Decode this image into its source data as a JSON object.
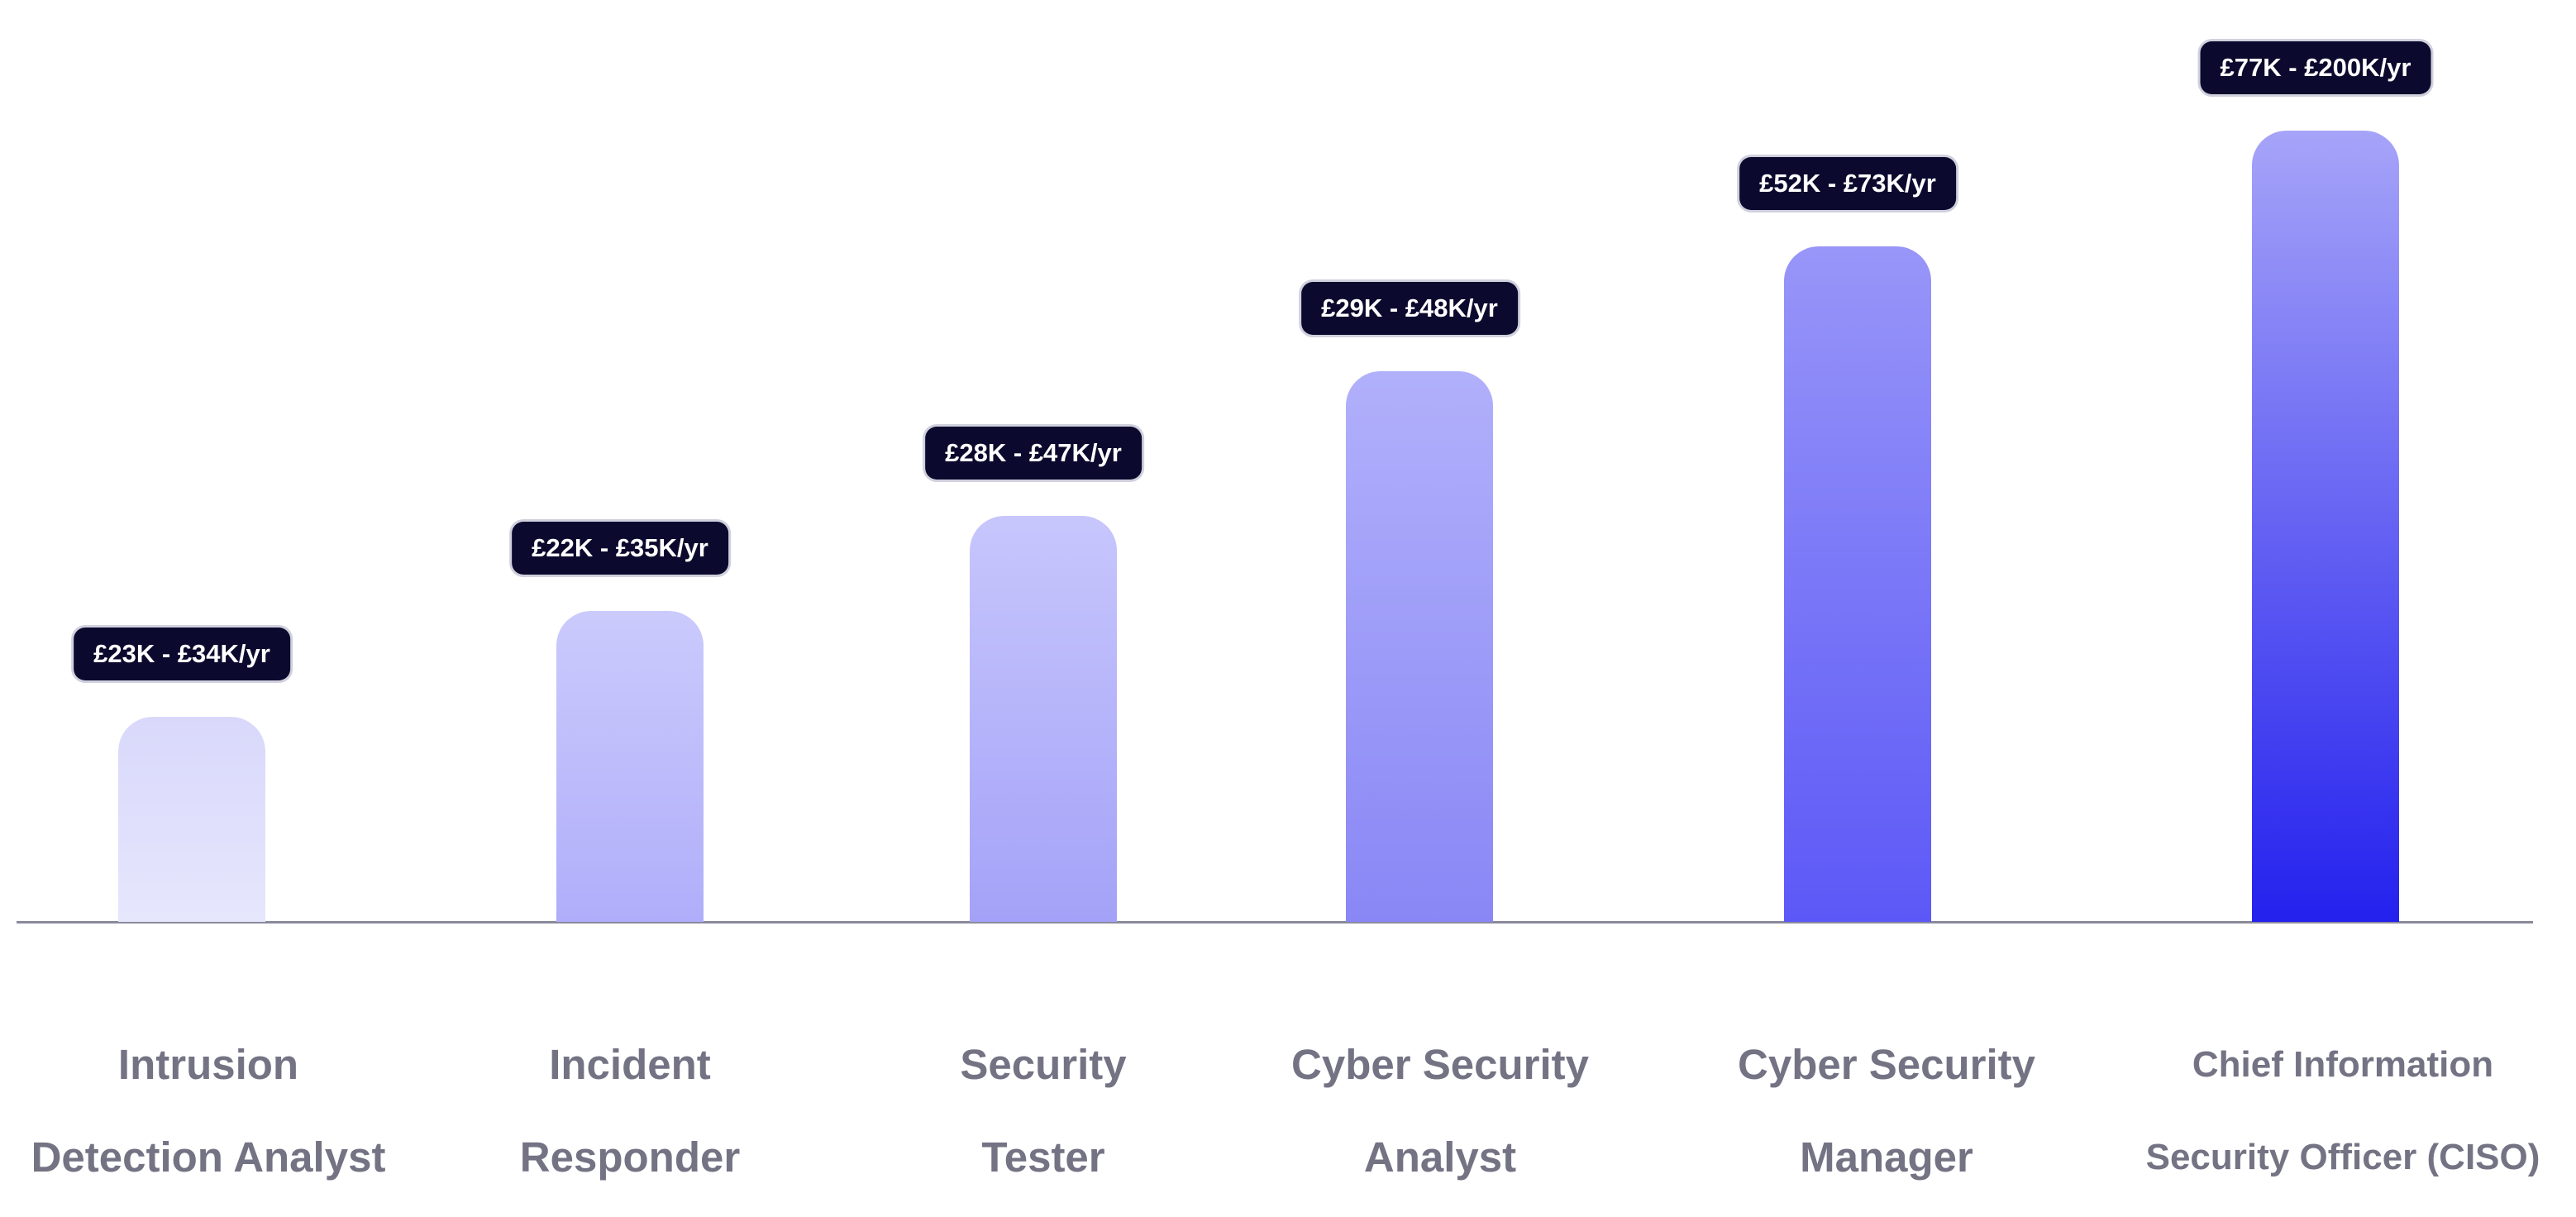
{
  "chart_data": {
    "type": "bar",
    "title": "",
    "xlabel": "",
    "ylabel": "",
    "ylim": [
      0,
      2200
    ],
    "grid": false,
    "legend": "none",
    "categories": [
      [
        "Intrusion",
        "Detection Analyst"
      ],
      [
        "Incident",
        "Responder"
      ],
      [
        "Security",
        "Tester"
      ],
      [
        "Cyber Security",
        "Analyst"
      ],
      [
        "Cyber Security",
        "Manager"
      ],
      [
        "Chief Information",
        "Security Officer (CISO)"
      ]
    ],
    "values": [
      540,
      820,
      1070,
      1450,
      1780,
      2085
    ],
    "value_labels": [
      "£23K - £34K/yr",
      "£22K - £35K/yr",
      "£28K - £47K/yr",
      "£29K - £48K/yr",
      "£52K - £73K/yr",
      "£77K - £200K/yr"
    ],
    "colors": {
      "badge_bg": "#0b0a2e",
      "badge_text": "#ffffff",
      "label_text": "#747384",
      "axis": "#8b8a9c",
      "bar_gradients": [
        [
          "#d9d8fb",
          "#e6e6fd"
        ],
        [
          "#cbcafc",
          "#b0aefa"
        ],
        [
          "#c7c6fc",
          "#a4a2f8"
        ],
        [
          "#b1b0fb",
          "#8987f5"
        ],
        [
          "#9896f8",
          "#5c58f7"
        ],
        [
          "#a6a4f8",
          "#2421ee"
        ]
      ]
    }
  }
}
